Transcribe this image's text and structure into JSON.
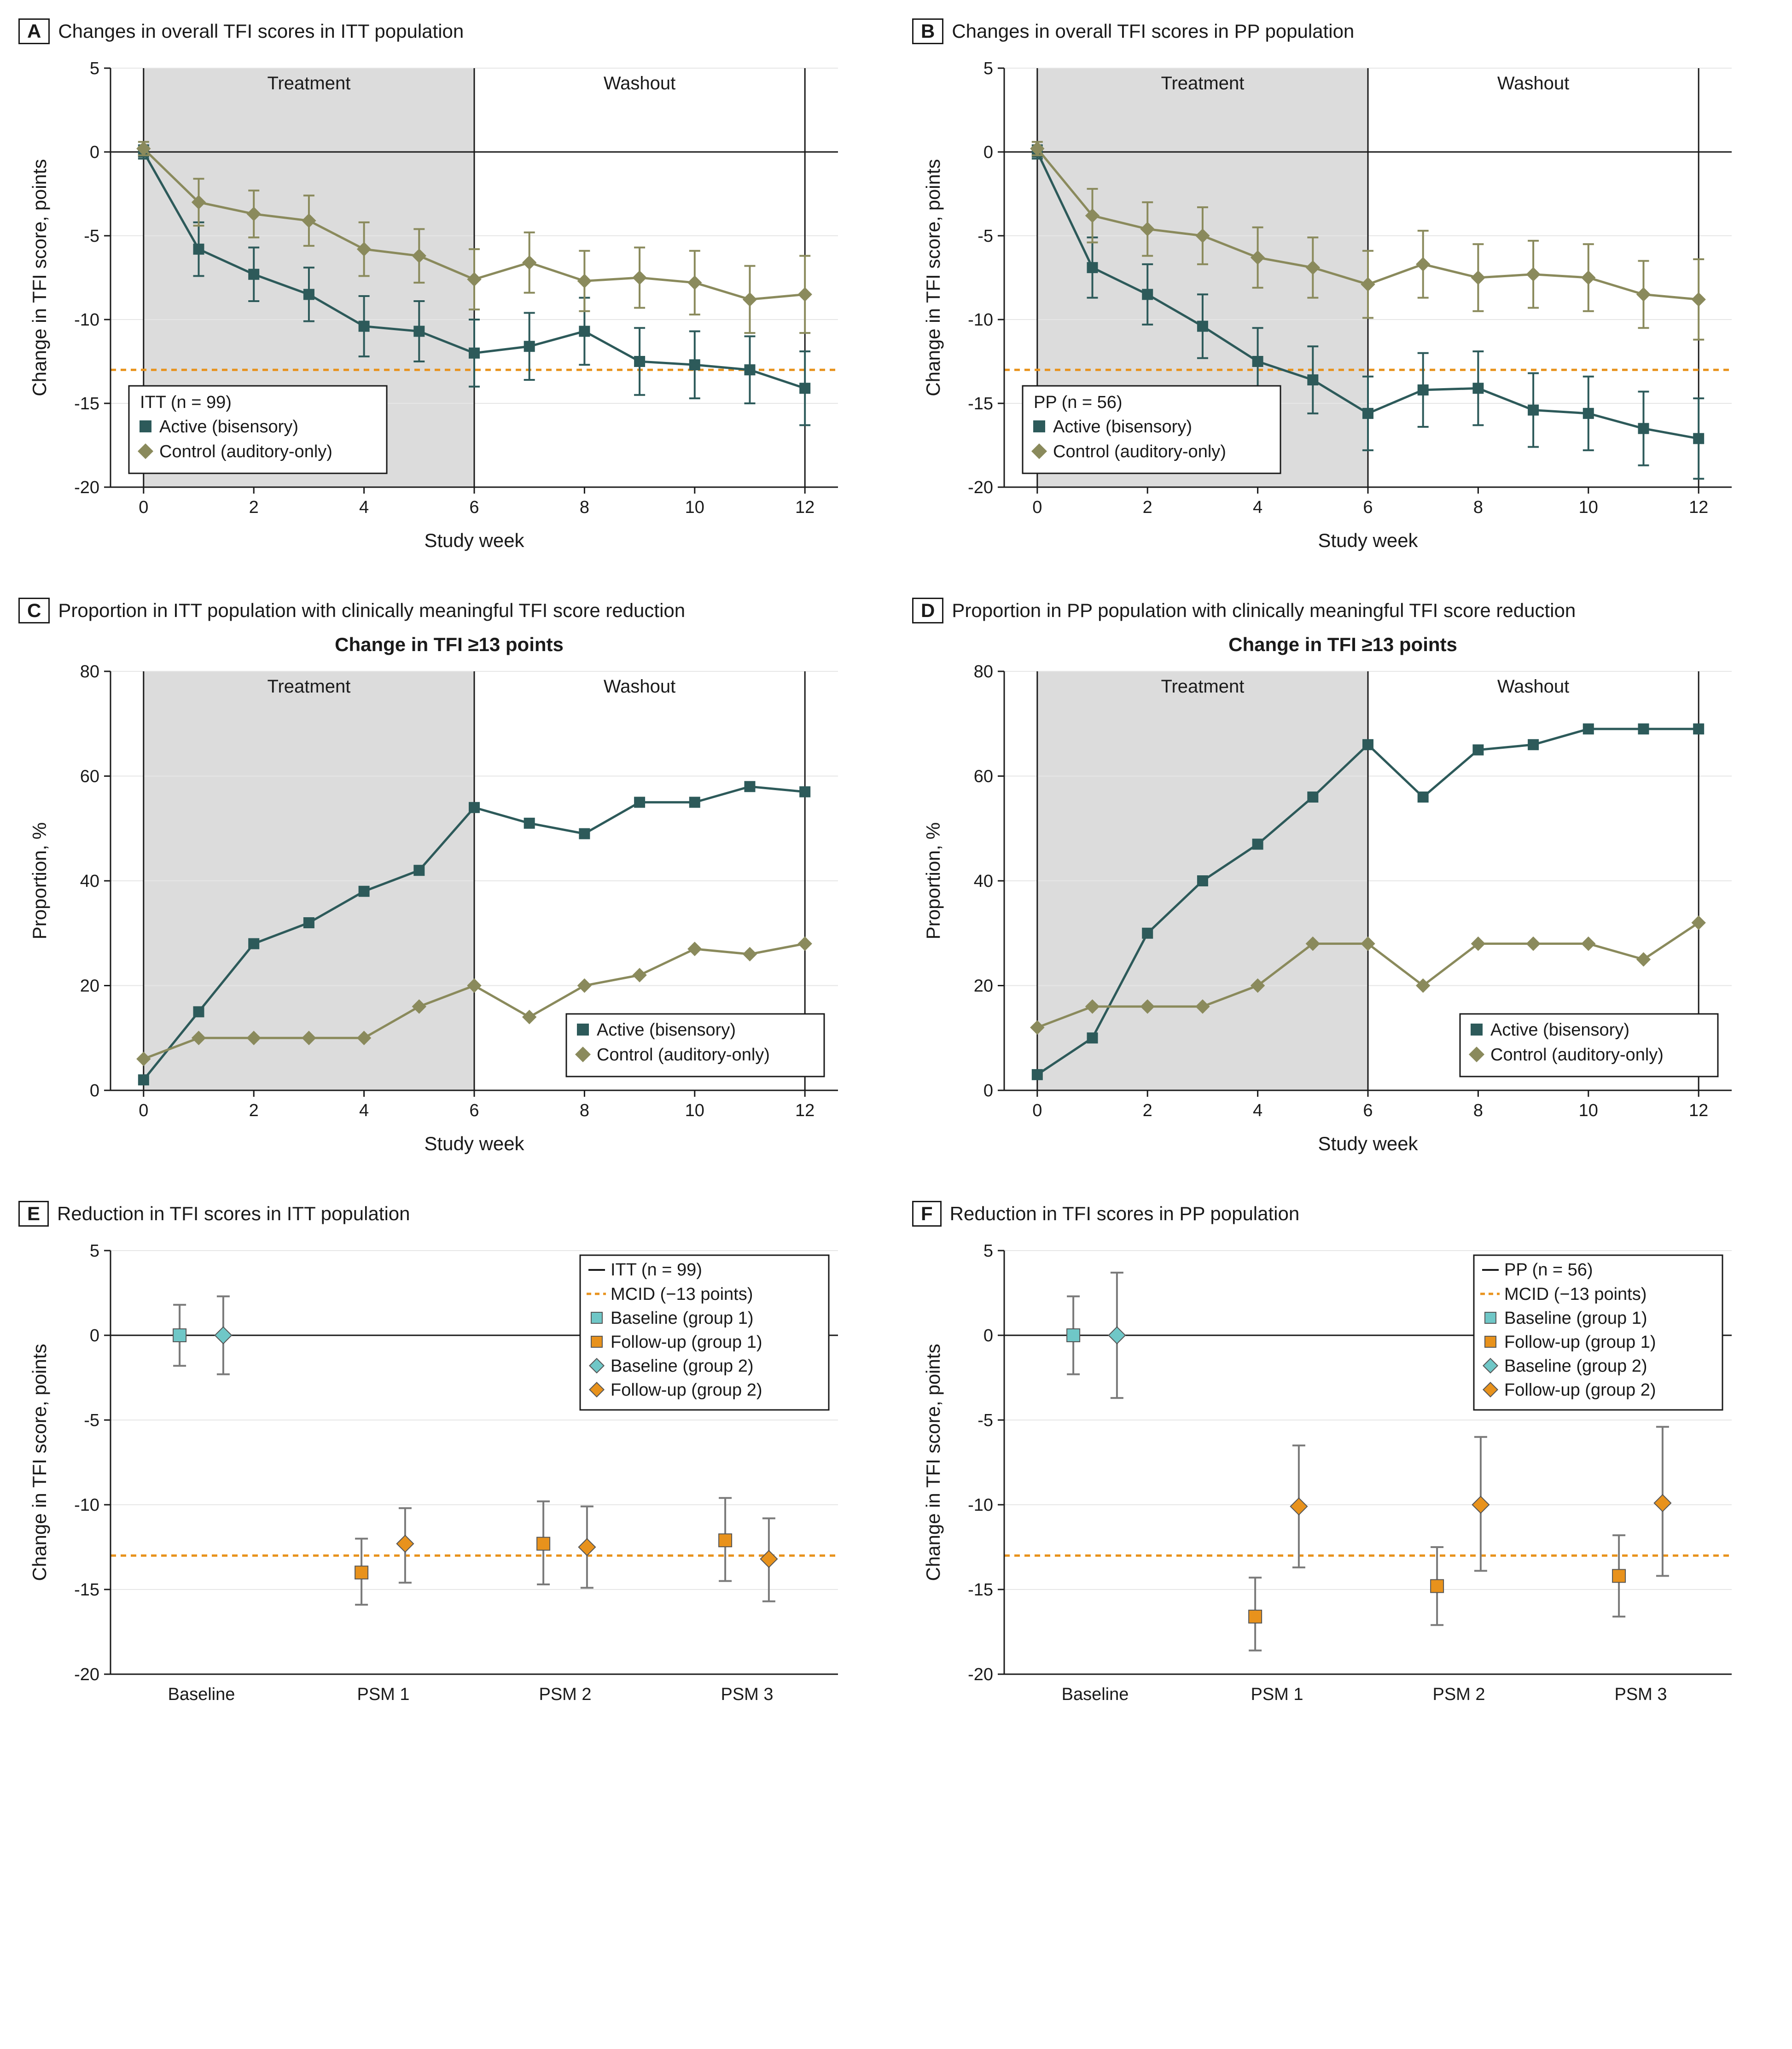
{
  "colors": {
    "active": "#2d5a5a",
    "control": "#8a8a5c",
    "mcid": "#e8921c",
    "baseline_g1": "#6fc7c7",
    "followup_g1": "#e8921c",
    "baseline_g2": "#6fc7c7",
    "followup_g2": "#e8921c",
    "grid": "#e6e6e6",
    "shade": "#dcdcdc",
    "axis": "#1a1a1a",
    "bg": "#ffffff"
  },
  "fonts": {
    "tick": 38,
    "axis_title": 42,
    "panel_title": 42,
    "legend": 38,
    "phase": 40
  },
  "panelA": {
    "letter": "A",
    "title": "Changes in overall TFI scores in ITT population",
    "x_label": "Study week",
    "y_label": "Change in TFI score, points",
    "x_ticks": [
      0,
      2,
      4,
      6,
      8,
      10,
      12
    ],
    "y_ticks": [
      -20,
      -15,
      -10,
      -5,
      0,
      5
    ],
    "xlim": [
      -0.6,
      12.6
    ],
    "ylim": [
      -20,
      5
    ],
    "shade": [
      0,
      6
    ],
    "phase_labels": [
      {
        "x": 3,
        "text": "Treatment"
      },
      {
        "x": 9,
        "text": "Washout"
      }
    ],
    "mcid": -13,
    "legend_title": "ITT (n = 99)",
    "legend_items": [
      {
        "label": "Active (bisensory)",
        "color": "#2d5a5a",
        "shape": "square"
      },
      {
        "label": "Control (auditory-only)",
        "color": "#8a8a5c",
        "shape": "diamond"
      }
    ],
    "series": [
      {
        "name": "active",
        "color": "#2d5a5a",
        "shape": "square",
        "points": [
          {
            "x": 0,
            "y": 0,
            "el": 0.4,
            "eu": 0.4
          },
          {
            "x": 1,
            "y": -5.8,
            "el": 1.6,
            "eu": 1.6
          },
          {
            "x": 2,
            "y": -7.3,
            "el": 1.6,
            "eu": 1.6
          },
          {
            "x": 3,
            "y": -8.5,
            "el": 1.6,
            "eu": 1.6
          },
          {
            "x": 4,
            "y": -10.4,
            "el": 1.8,
            "eu": 1.8
          },
          {
            "x": 5,
            "y": -10.7,
            "el": 1.8,
            "eu": 1.8
          },
          {
            "x": 6,
            "y": -12.0,
            "el": 2.0,
            "eu": 2.0
          },
          {
            "x": 7,
            "y": -11.6,
            "el": 2.0,
            "eu": 2.0
          },
          {
            "x": 8,
            "y": -10.7,
            "el": 2.0,
            "eu": 2.0
          },
          {
            "x": 9,
            "y": -12.5,
            "el": 2.0,
            "eu": 2.0
          },
          {
            "x": 10,
            "y": -12.7,
            "el": 2.0,
            "eu": 2.0
          },
          {
            "x": 11,
            "y": -13.0,
            "el": 2.0,
            "eu": 2.0
          },
          {
            "x": 12,
            "y": -14.1,
            "el": 2.2,
            "eu": 2.2
          }
        ]
      },
      {
        "name": "control",
        "color": "#8a8a5c",
        "shape": "diamond",
        "points": [
          {
            "x": 0,
            "y": 0.2,
            "el": 0.4,
            "eu": 0.4
          },
          {
            "x": 1,
            "y": -3.0,
            "el": 1.4,
            "eu": 1.4
          },
          {
            "x": 2,
            "y": -3.7,
            "el": 1.4,
            "eu": 1.4
          },
          {
            "x": 3,
            "y": -4.1,
            "el": 1.5,
            "eu": 1.5
          },
          {
            "x": 4,
            "y": -5.8,
            "el": 1.6,
            "eu": 1.6
          },
          {
            "x": 5,
            "y": -6.2,
            "el": 1.6,
            "eu": 1.6
          },
          {
            "x": 6,
            "y": -7.6,
            "el": 1.8,
            "eu": 1.8
          },
          {
            "x": 7,
            "y": -6.6,
            "el": 1.8,
            "eu": 1.8
          },
          {
            "x": 8,
            "y": -7.7,
            "el": 1.8,
            "eu": 1.8
          },
          {
            "x": 9,
            "y": -7.5,
            "el": 1.8,
            "eu": 1.8
          },
          {
            "x": 10,
            "y": -7.8,
            "el": 1.9,
            "eu": 1.9
          },
          {
            "x": 11,
            "y": -8.8,
            "el": 2.0,
            "eu": 2.0
          },
          {
            "x": 12,
            "y": -8.5,
            "el": 2.3,
            "eu": 2.3
          }
        ]
      }
    ]
  },
  "panelB": {
    "letter": "B",
    "title": "Changes in overall TFI scores in PP population",
    "x_label": "Study week",
    "y_label": "Change in TFI score, points",
    "x_ticks": [
      0,
      2,
      4,
      6,
      8,
      10,
      12
    ],
    "y_ticks": [
      -20,
      -15,
      -10,
      -5,
      0,
      5
    ],
    "xlim": [
      -0.6,
      12.6
    ],
    "ylim": [
      -20,
      5
    ],
    "shade": [
      0,
      6
    ],
    "phase_labels": [
      {
        "x": 3,
        "text": "Treatment"
      },
      {
        "x": 9,
        "text": "Washout"
      }
    ],
    "mcid": -13,
    "legend_title": "PP (n = 56)",
    "legend_items": [
      {
        "label": "Active (bisensory)",
        "color": "#2d5a5a",
        "shape": "square"
      },
      {
        "label": "Control (auditory-only)",
        "color": "#8a8a5c",
        "shape": "diamond"
      }
    ],
    "series": [
      {
        "name": "active",
        "color": "#2d5a5a",
        "shape": "square",
        "points": [
          {
            "x": 0,
            "y": 0,
            "el": 0.4,
            "eu": 0.4
          },
          {
            "x": 1,
            "y": -6.9,
            "el": 1.8,
            "eu": 1.8
          },
          {
            "x": 2,
            "y": -8.5,
            "el": 1.8,
            "eu": 1.8
          },
          {
            "x": 3,
            "y": -10.4,
            "el": 1.9,
            "eu": 1.9
          },
          {
            "x": 4,
            "y": -12.5,
            "el": 2.0,
            "eu": 2.0
          },
          {
            "x": 5,
            "y": -13.6,
            "el": 2.0,
            "eu": 2.0
          },
          {
            "x": 6,
            "y": -15.6,
            "el": 2.2,
            "eu": 2.2
          },
          {
            "x": 7,
            "y": -14.2,
            "el": 2.2,
            "eu": 2.2
          },
          {
            "x": 8,
            "y": -14.1,
            "el": 2.2,
            "eu": 2.2
          },
          {
            "x": 9,
            "y": -15.4,
            "el": 2.2,
            "eu": 2.2
          },
          {
            "x": 10,
            "y": -15.6,
            "el": 2.2,
            "eu": 2.2
          },
          {
            "x": 11,
            "y": -16.5,
            "el": 2.2,
            "eu": 2.2
          },
          {
            "x": 12,
            "y": -17.1,
            "el": 2.4,
            "eu": 2.4
          }
        ]
      },
      {
        "name": "control",
        "color": "#8a8a5c",
        "shape": "diamond",
        "points": [
          {
            "x": 0,
            "y": 0.2,
            "el": 0.4,
            "eu": 0.4
          },
          {
            "x": 1,
            "y": -3.8,
            "el": 1.6,
            "eu": 1.6
          },
          {
            "x": 2,
            "y": -4.6,
            "el": 1.6,
            "eu": 1.6
          },
          {
            "x": 3,
            "y": -5.0,
            "el": 1.7,
            "eu": 1.7
          },
          {
            "x": 4,
            "y": -6.3,
            "el": 1.8,
            "eu": 1.8
          },
          {
            "x": 5,
            "y": -6.9,
            "el": 1.8,
            "eu": 1.8
          },
          {
            "x": 6,
            "y": -7.9,
            "el": 2.0,
            "eu": 2.0
          },
          {
            "x": 7,
            "y": -6.7,
            "el": 2.0,
            "eu": 2.0
          },
          {
            "x": 8,
            "y": -7.5,
            "el": 2.0,
            "eu": 2.0
          },
          {
            "x": 9,
            "y": -7.3,
            "el": 2.0,
            "eu": 2.0
          },
          {
            "x": 10,
            "y": -7.5,
            "el": 2.0,
            "eu": 2.0
          },
          {
            "x": 11,
            "y": -8.5,
            "el": 2.0,
            "eu": 2.0
          },
          {
            "x": 12,
            "y": -8.8,
            "el": 2.4,
            "eu": 2.4
          }
        ]
      }
    ]
  },
  "panelC": {
    "letter": "C",
    "title": "Proportion in ITT population with clinically meaningful TFI score reduction",
    "subtitle": "Change in TFI ≥13 points",
    "x_label": "Study week",
    "y_label": "Proportion, %",
    "x_ticks": [
      0,
      2,
      4,
      6,
      8,
      10,
      12
    ],
    "y_ticks": [
      0,
      20,
      40,
      60,
      80
    ],
    "xlim": [
      -0.6,
      12.6
    ],
    "ylim": [
      0,
      80
    ],
    "shade": [
      0,
      6
    ],
    "phase_labels": [
      {
        "x": 3,
        "text": "Treatment"
      },
      {
        "x": 9,
        "text": "Washout"
      }
    ],
    "legend_items": [
      {
        "label": "Active (bisensory)",
        "color": "#2d5a5a",
        "shape": "square"
      },
      {
        "label": "Control (auditory-only)",
        "color": "#8a8a5c",
        "shape": "diamond"
      }
    ],
    "series": [
      {
        "name": "active",
        "color": "#2d5a5a",
        "shape": "square",
        "points": [
          {
            "x": 0,
            "y": 2
          },
          {
            "x": 1,
            "y": 15
          },
          {
            "x": 2,
            "y": 28
          },
          {
            "x": 3,
            "y": 32
          },
          {
            "x": 4,
            "y": 38
          },
          {
            "x": 5,
            "y": 42
          },
          {
            "x": 6,
            "y": 54
          },
          {
            "x": 7,
            "y": 51
          },
          {
            "x": 8,
            "y": 49
          },
          {
            "x": 9,
            "y": 55
          },
          {
            "x": 10,
            "y": 55
          },
          {
            "x": 11,
            "y": 58
          },
          {
            "x": 12,
            "y": 57
          }
        ]
      },
      {
        "name": "control",
        "color": "#8a8a5c",
        "shape": "diamond",
        "points": [
          {
            "x": 0,
            "y": 6
          },
          {
            "x": 1,
            "y": 10
          },
          {
            "x": 2,
            "y": 10
          },
          {
            "x": 3,
            "y": 10
          },
          {
            "x": 4,
            "y": 10
          },
          {
            "x": 5,
            "y": 16
          },
          {
            "x": 6,
            "y": 20
          },
          {
            "x": 7,
            "y": 14
          },
          {
            "x": 8,
            "y": 20
          },
          {
            "x": 9,
            "y": 22
          },
          {
            "x": 10,
            "y": 27
          },
          {
            "x": 11,
            "y": 26
          },
          {
            "x": 12,
            "y": 28
          }
        ]
      }
    ]
  },
  "panelD": {
    "letter": "D",
    "title": "Proportion in PP population with clinically meaningful TFI score reduction",
    "subtitle": "Change in TFI ≥13 points",
    "x_label": "Study week",
    "y_label": "Proportion, %",
    "x_ticks": [
      0,
      2,
      4,
      6,
      8,
      10,
      12
    ],
    "y_ticks": [
      0,
      20,
      40,
      60,
      80
    ],
    "xlim": [
      -0.6,
      12.6
    ],
    "ylim": [
      0,
      80
    ],
    "shade": [
      0,
      6
    ],
    "phase_labels": [
      {
        "x": 3,
        "text": "Treatment"
      },
      {
        "x": 9,
        "text": "Washout"
      }
    ],
    "legend_items": [
      {
        "label": "Active (bisensory)",
        "color": "#2d5a5a",
        "shape": "square"
      },
      {
        "label": "Control (auditory-only)",
        "color": "#8a8a5c",
        "shape": "diamond"
      }
    ],
    "series": [
      {
        "name": "active",
        "color": "#2d5a5a",
        "shape": "square",
        "points": [
          {
            "x": 0,
            "y": 3
          },
          {
            "x": 1,
            "y": 10
          },
          {
            "x": 2,
            "y": 30
          },
          {
            "x": 3,
            "y": 40
          },
          {
            "x": 4,
            "y": 47
          },
          {
            "x": 5,
            "y": 56
          },
          {
            "x": 6,
            "y": 66
          },
          {
            "x": 7,
            "y": 56
          },
          {
            "x": 8,
            "y": 65
          },
          {
            "x": 9,
            "y": 66
          },
          {
            "x": 10,
            "y": 69
          },
          {
            "x": 11,
            "y": 69
          },
          {
            "x": 12,
            "y": 69
          }
        ]
      },
      {
        "name": "control",
        "color": "#8a8a5c",
        "shape": "diamond",
        "points": [
          {
            "x": 0,
            "y": 12
          },
          {
            "x": 1,
            "y": 16
          },
          {
            "x": 2,
            "y": 16
          },
          {
            "x": 3,
            "y": 16
          },
          {
            "x": 4,
            "y": 20
          },
          {
            "x": 5,
            "y": 28
          },
          {
            "x": 6,
            "y": 28
          },
          {
            "x": 7,
            "y": 20
          },
          {
            "x": 8,
            "y": 28
          },
          {
            "x": 9,
            "y": 28
          },
          {
            "x": 10,
            "y": 28
          },
          {
            "x": 11,
            "y": 25
          },
          {
            "x": 12,
            "y": 32
          }
        ]
      }
    ]
  },
  "panelE": {
    "letter": "E",
    "title": "Reduction in TFI scores in ITT population",
    "y_label": "Change in TFI score, points",
    "x_cats": [
      "Baseline",
      "PSM 1",
      "PSM 2",
      "PSM 3"
    ],
    "y_ticks": [
      -20,
      -15,
      -10,
      -5,
      0,
      5
    ],
    "ylim": [
      -20,
      5
    ],
    "mcid": -13,
    "legend_title": "ITT (n = 99)",
    "legend_items": [
      {
        "label": "MCID (−13 points)",
        "color": "#e8921c",
        "shape": "dash"
      },
      {
        "label": "Baseline (group 1)",
        "color": "#6fc7c7",
        "shape": "square"
      },
      {
        "label": "Follow-up (group 1)",
        "color": "#e8921c",
        "shape": "square"
      },
      {
        "label": "Baseline (group 2)",
        "color": "#6fc7c7",
        "shape": "diamond"
      },
      {
        "label": "Follow-up (group 2)",
        "color": "#e8921c",
        "shape": "diamond"
      }
    ],
    "points": [
      {
        "cat": 0,
        "off": -0.12,
        "y": 0.0,
        "el": 1.8,
        "eu": 1.8,
        "color": "#6fc7c7",
        "shape": "square"
      },
      {
        "cat": 0,
        "off": 0.12,
        "y": 0.0,
        "el": 2.3,
        "eu": 2.3,
        "color": "#6fc7c7",
        "shape": "diamond"
      },
      {
        "cat": 1,
        "off": -0.12,
        "y": -14.0,
        "el": 1.9,
        "eu": 2.0,
        "color": "#e8921c",
        "shape": "square"
      },
      {
        "cat": 1,
        "off": 0.12,
        "y": -12.3,
        "el": 2.3,
        "eu": 2.1,
        "color": "#e8921c",
        "shape": "diamond"
      },
      {
        "cat": 2,
        "off": -0.12,
        "y": -12.3,
        "el": 2.4,
        "eu": 2.5,
        "color": "#e8921c",
        "shape": "square"
      },
      {
        "cat": 2,
        "off": 0.12,
        "y": -12.5,
        "el": 2.4,
        "eu": 2.4,
        "color": "#e8921c",
        "shape": "diamond"
      },
      {
        "cat": 3,
        "off": -0.12,
        "y": -12.1,
        "el": 2.4,
        "eu": 2.5,
        "color": "#e8921c",
        "shape": "square"
      },
      {
        "cat": 3,
        "off": 0.12,
        "y": -13.2,
        "el": 2.5,
        "eu": 2.4,
        "color": "#e8921c",
        "shape": "diamond"
      }
    ]
  },
  "panelF": {
    "letter": "F",
    "title": "Reduction in TFI scores in PP population",
    "y_label": "Change in TFI score, points",
    "x_cats": [
      "Baseline",
      "PSM 1",
      "PSM 2",
      "PSM 3"
    ],
    "y_ticks": [
      -20,
      -15,
      -10,
      -5,
      0,
      5
    ],
    "ylim": [
      -20,
      5
    ],
    "mcid": -13,
    "legend_title": "PP (n = 56)",
    "legend_items": [
      {
        "label": "MCID (−13 points)",
        "color": "#e8921c",
        "shape": "dash"
      },
      {
        "label": "Baseline (group 1)",
        "color": "#6fc7c7",
        "shape": "square"
      },
      {
        "label": "Follow-up (group 1)",
        "color": "#e8921c",
        "shape": "square"
      },
      {
        "label": "Baseline (group 2)",
        "color": "#6fc7c7",
        "shape": "diamond"
      },
      {
        "label": "Follow-up (group 2)",
        "color": "#e8921c",
        "shape": "diamond"
      }
    ],
    "points": [
      {
        "cat": 0,
        "off": -0.12,
        "y": 0.0,
        "el": 2.3,
        "eu": 2.3,
        "color": "#6fc7c7",
        "shape": "square"
      },
      {
        "cat": 0,
        "off": 0.12,
        "y": 0.0,
        "el": 3.7,
        "eu": 3.7,
        "color": "#6fc7c7",
        "shape": "diamond"
      },
      {
        "cat": 1,
        "off": -0.12,
        "y": -16.6,
        "el": 2.0,
        "eu": 2.3,
        "color": "#e8921c",
        "shape": "square"
      },
      {
        "cat": 1,
        "off": 0.12,
        "y": -10.1,
        "el": 3.6,
        "eu": 3.6,
        "color": "#e8921c",
        "shape": "diamond"
      },
      {
        "cat": 2,
        "off": -0.12,
        "y": -14.8,
        "el": 2.3,
        "eu": 2.3,
        "color": "#e8921c",
        "shape": "square"
      },
      {
        "cat": 2,
        "off": 0.12,
        "y": -10.0,
        "el": 3.9,
        "eu": 4.0,
        "color": "#e8921c",
        "shape": "diamond"
      },
      {
        "cat": 3,
        "off": -0.12,
        "y": -14.2,
        "el": 2.4,
        "eu": 2.4,
        "color": "#e8921c",
        "shape": "square"
      },
      {
        "cat": 3,
        "off": 0.12,
        "y": -9.9,
        "el": 4.3,
        "eu": 4.5,
        "color": "#e8921c",
        "shape": "diamond"
      }
    ]
  }
}
